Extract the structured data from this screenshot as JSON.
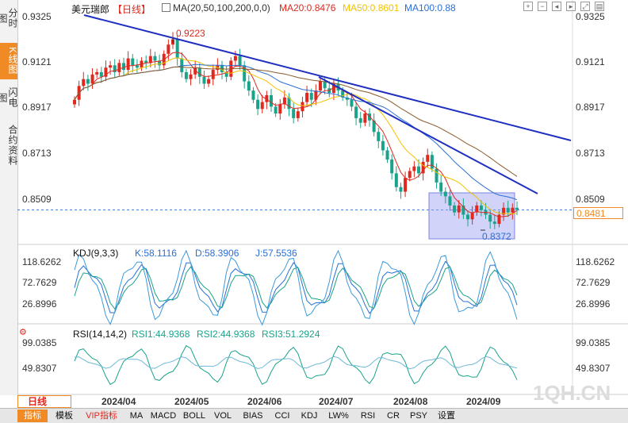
{
  "sidebar": {
    "tabs": [
      {
        "label": "分时图",
        "active": false
      },
      {
        "label": "K线图",
        "active": true
      },
      {
        "label": "闪电图",
        "active": false
      },
      {
        "label": "合约资料",
        "active": false
      }
    ]
  },
  "header": {
    "title": "美元瑞郎",
    "period": "【日线】",
    "ma_label": "MA(20,50,100,200,0,0)",
    "ma20": "MA20:0.8476",
    "ma50": "MA50:0.8601",
    "ma100": "MA100:0.88"
  },
  "price_axis": {
    "ticks": [
      "0.9325",
      "0.9121",
      "0.8917",
      "0.8713",
      "0.8509"
    ],
    "current_price": "0.8481",
    "high_label": "0.9223",
    "low_label": "0.8372"
  },
  "kdj": {
    "title": "KDJ(9,3,3)",
    "k": "K:58.1116",
    "d": "D:58.3906",
    "j": "J:57.5536",
    "ticks": [
      "118.6262",
      "72.7629",
      "26.8996"
    ]
  },
  "rsi": {
    "title": "RSI(14,14,2)",
    "rsi1": "RSI1:44.9368",
    "rsi2": "RSI2:44.9368",
    "rsi3": "RSI3:51.2924",
    "ticks": [
      "99.0385",
      "49.8307"
    ]
  },
  "time_axis": {
    "period_label": "日线",
    "months": [
      "2024/04",
      "2024/05",
      "2024/06",
      "2024/07",
      "2024/08",
      "2024/09"
    ]
  },
  "watermark": "1QH.CN",
  "toolbar": {
    "items": [
      "指标",
      "模板",
      "VIP指标",
      "MA",
      "MACD",
      "BOLL",
      "VOL",
      "BIAS",
      "CCI",
      "KDJ",
      "LW%",
      "RSI",
      "CR",
      "PSY",
      "设置"
    ]
  },
  "colors": {
    "up": "#e0281e",
    "down": "#1aa38a",
    "ma20": "#e0281e",
    "ma50": "#f2c200",
    "ma100": "#2a6fd6",
    "ma200": "#8a5a2b",
    "trendline": "#1f2fbf",
    "accent": "#f08a24"
  },
  "chart_data": {
    "type": "candlestick",
    "title": "美元瑞郎 日线",
    "ylim": [
      0.8372,
      0.9325
    ],
    "y_ticks": [
      0.9325,
      0.9121,
      0.8917,
      0.8713,
      0.8509
    ],
    "x_ticks": [
      "2024/04",
      "2024/05",
      "2024/06",
      "2024/07",
      "2024/08",
      "2024/09"
    ],
    "annotations": {
      "high": 0.9223,
      "low": 0.8372,
      "last": 0.8481
    },
    "series": [
      {
        "name": "MA20",
        "value": 0.8476
      },
      {
        "name": "MA50",
        "value": 0.8601
      },
      {
        "name": "MA100",
        "value": 0.88
      }
    ],
    "close_approx": [
      0.896,
      0.902,
      0.905,
      0.903,
      0.907,
      0.908,
      0.906,
      0.91,
      0.911,
      0.908,
      0.912,
      0.909,
      0.914,
      0.911,
      0.91,
      0.913,
      0.912,
      0.915,
      0.913,
      0.911,
      0.916,
      0.92,
      0.9223,
      0.914,
      0.908,
      0.905,
      0.907,
      0.91,
      0.906,
      0.903,
      0.905,
      0.909,
      0.911,
      0.908,
      0.906,
      0.913,
      0.915,
      0.911,
      0.904,
      0.9,
      0.896,
      0.892,
      0.895,
      0.898,
      0.893,
      0.89,
      0.894,
      0.897,
      0.892,
      0.888,
      0.891,
      0.895,
      0.899,
      0.896,
      0.9,
      0.904,
      0.901,
      0.899,
      0.903,
      0.9,
      0.897,
      0.896,
      0.893,
      0.888,
      0.886,
      0.89,
      0.887,
      0.882,
      0.878,
      0.874,
      0.87,
      0.864,
      0.858,
      0.856,
      0.862,
      0.865,
      0.867,
      0.864,
      0.869,
      0.872,
      0.866,
      0.86,
      0.856,
      0.854,
      0.85,
      0.847,
      0.85,
      0.846,
      0.844,
      0.847,
      0.85,
      0.848,
      0.846,
      0.843,
      0.842,
      0.846,
      0.849,
      0.847,
      0.849,
      0.8481
    ],
    "kdj_range": [
      26.8996,
      118.6262
    ],
    "rsi_range": [
      49.8307,
      99.0385
    ]
  }
}
